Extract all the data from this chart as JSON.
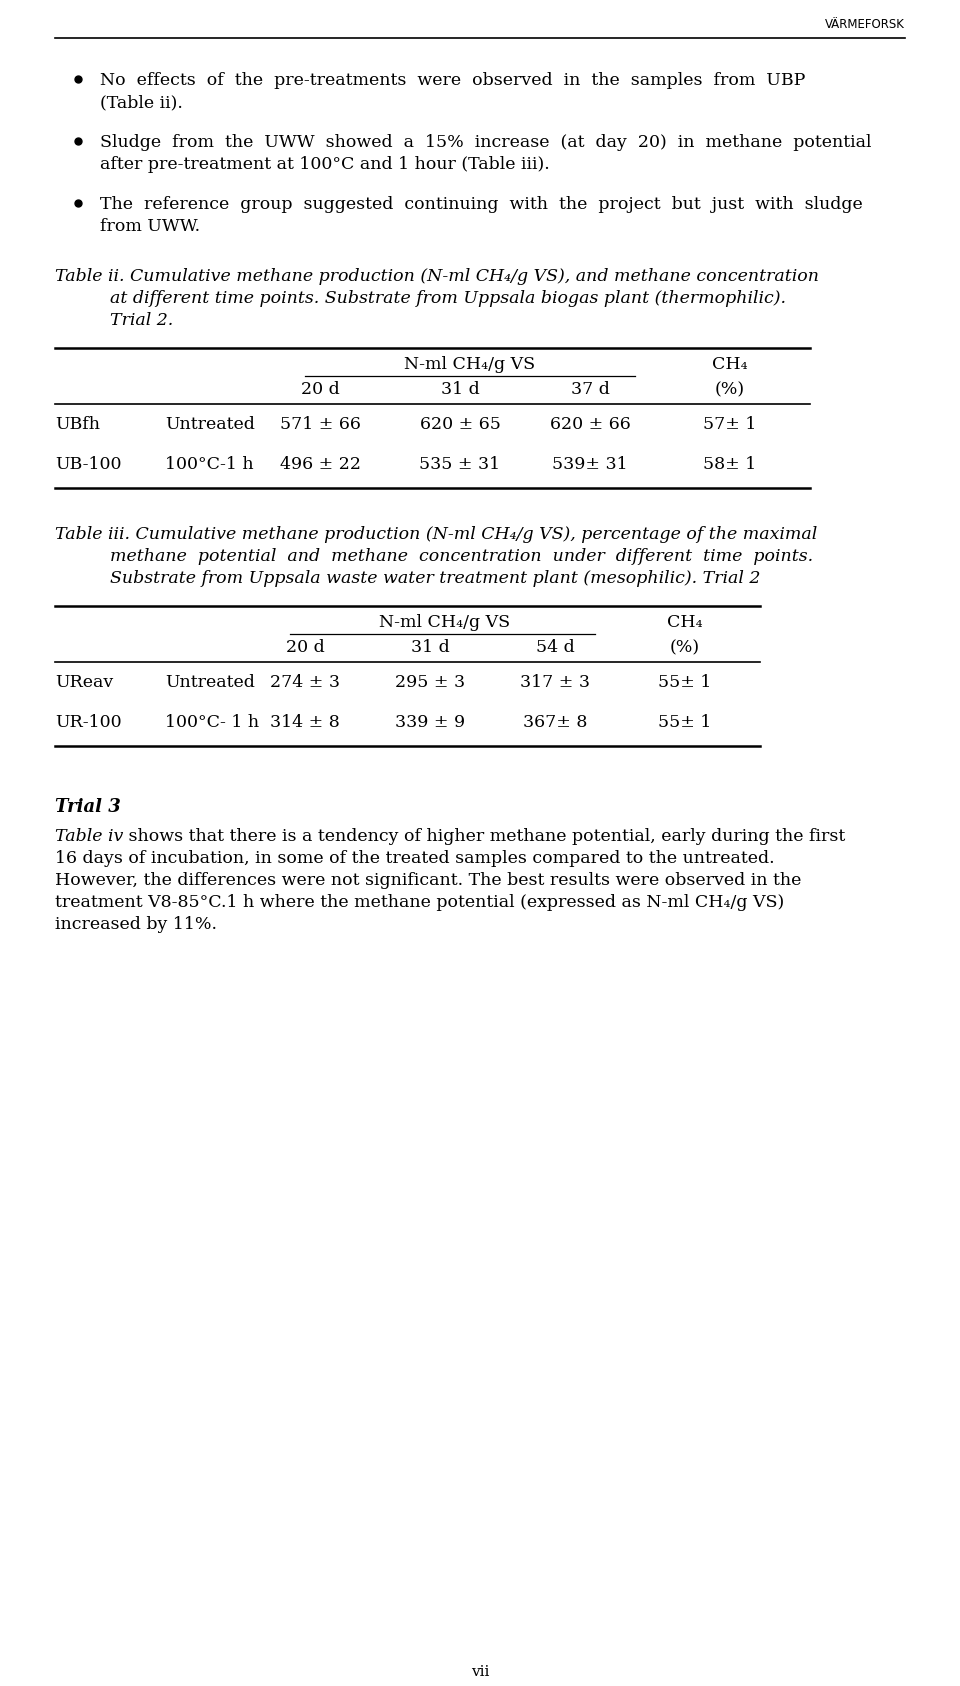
{
  "page_header": "VÄRMEFORSK",
  "page_footer": "vii",
  "background_color": "#ffffff",
  "text_color": "#000000",
  "bullet_texts": [
    [
      "No  effects  of  the  pre-treatments  were  observed  in  the  samples  from  UBP",
      "(Table ii)."
    ],
    [
      "Sludge  from  the  UWW  showed  a  15%  increase  (at  day  20)  in  methane  potential",
      "after pre-treatment at 100°C and 1 hour (Table iii)."
    ],
    [
      "The  reference  group  suggested  continuing  with  the  project  but  just  with  sludge",
      "from UWW."
    ]
  ],
  "table2_caption": [
    "Table ii. Cumulative methane production (N-ml CH₄/g VS), and methane concentration",
    "at different time points. Substrate from Uppsala biogas plant (thermophilic).",
    "Trial 2."
  ],
  "table2_header_group1": "N-ml CH₄/g VS",
  "table2_header_group2": "CH₄",
  "table2_subheaders": [
    "20 d",
    "31 d",
    "37 d",
    "(%)"
  ],
  "table2_rows": [
    [
      "UBfh",
      "Untreated",
      "571 ± 66",
      "620 ± 65",
      "620 ± 66",
      "57± 1"
    ],
    [
      "UB-100",
      "100°C-1 h",
      "496 ± 22",
      "535 ± 31",
      "539± 31",
      "58± 1"
    ]
  ],
  "table3_caption": [
    "Table iii. Cumulative methane production (N-ml CH₄/g VS), percentage of the maximal",
    "methane  potential  and  methane  concentration  under  different  time  points.",
    "Substrate from Uppsala waste water treatment plant (mesophilic). Trial 2"
  ],
  "table3_header_group1": "N-ml CH₄/g VS",
  "table3_header_group2": "CH₄",
  "table3_subheaders": [
    "20 d",
    "31 d",
    "54 d",
    "(%)"
  ],
  "table3_rows": [
    [
      "UReav",
      "Untreated",
      "274 ± 3",
      "295 ± 3",
      "317 ± 3",
      "55± 1"
    ],
    [
      "UR-100",
      "100°C- 1 h",
      "314 ± 8",
      "339 ± 9",
      "367± 8",
      "55± 1"
    ]
  ],
  "trial3_heading": "Trial 3",
  "trial3_lines": [
    [
      "Table iv",
      " shows that there is a tendency of higher methane potential, early during the first"
    ],
    [
      "16 days of incubation, in some of the treated samples compared to the untreated."
    ],
    [
      "However, the differences were not significant. The best results were observed in the"
    ],
    [
      "treatment V8-85°C.1 h where the methane potential (expressed as N-ml CH₄/g VS)"
    ],
    [
      "increased by 11%."
    ]
  ],
  "body_fontsize": 12.5,
  "caption_fontsize": 12.5,
  "header_fontsize": 8.5,
  "footer_fontsize": 11
}
